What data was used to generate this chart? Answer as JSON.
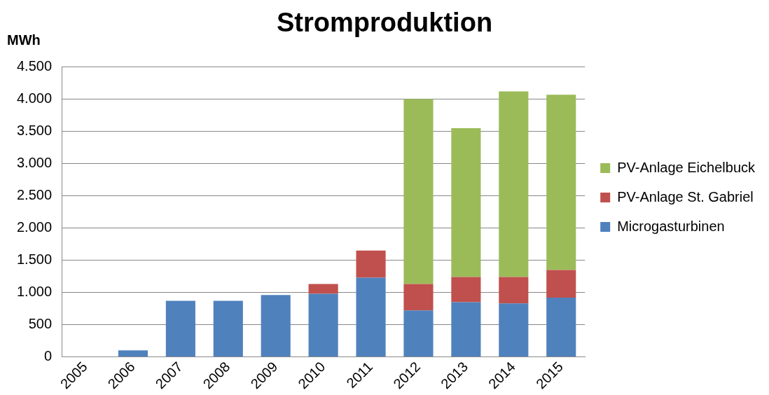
{
  "chart_data": {
    "type": "bar",
    "title": "Stromproduktion",
    "ylabel": "MWh",
    "categories": [
      "2005",
      "2006",
      "2007",
      "2008",
      "2009",
      "2010",
      "2011",
      "2012",
      "2013",
      "2014",
      "2015"
    ],
    "stacked": true,
    "series": [
      {
        "name": "Microgasturbinen",
        "color": "#4f81bd",
        "values": [
          0,
          100,
          870,
          870,
          960,
          980,
          1230,
          720,
          850,
          830,
          920
        ]
      },
      {
        "name": "PV-Anlage St. Gabriel",
        "color": "#c0504d",
        "values": [
          null,
          null,
          null,
          null,
          null,
          150,
          420,
          410,
          390,
          410,
          430
        ]
      },
      {
        "name": "PV-Anlage Eichelbuck",
        "color": "#9bbb59",
        "values": [
          null,
          null,
          null,
          null,
          null,
          null,
          null,
          2870,
          2310,
          2880,
          2720
        ]
      }
    ],
    "ylim": [
      0,
      4500
    ],
    "yticks": [
      {
        "value": 0,
        "label": "0"
      },
      {
        "value": 500,
        "label": "500"
      },
      {
        "value": 1000,
        "label": "1.000"
      },
      {
        "value": 1500,
        "label": "1.500"
      },
      {
        "value": 2000,
        "label": "2.000"
      },
      {
        "value": 2500,
        "label": "2.500"
      },
      {
        "value": 3000,
        "label": "3.000"
      },
      {
        "value": 3500,
        "label": "3.500"
      },
      {
        "value": 4000,
        "label": "4.000"
      },
      {
        "value": 4500,
        "label": "4.500"
      }
    ],
    "grid": "y",
    "legend": "right"
  }
}
